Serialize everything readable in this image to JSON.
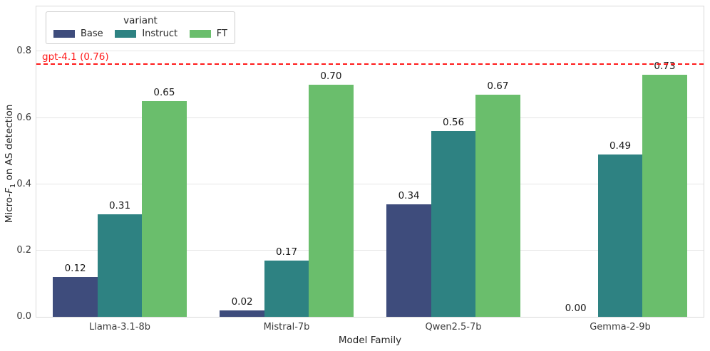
{
  "figure": {
    "background": "#ffffff",
    "plot_border_color": "#d9d9d9",
    "grid_color": "#e5e5e5",
    "tick_text_color": "#3a3a3a"
  },
  "chart_data": {
    "type": "bar",
    "title": "",
    "xlabel": "Model Family",
    "ylabel": {
      "prefix": "Micro-",
      "variable": "F",
      "subscript": "1",
      "suffix": " on AS detection"
    },
    "categories": [
      "Llama-3.1-8b",
      "Mistral-7b",
      "Qwen2.5-7b",
      "Gemma-2-9b"
    ],
    "series": [
      {
        "name": "Base",
        "color": "#3e4c7c",
        "values": [
          0.12,
          0.02,
          0.34,
          0.0
        ]
      },
      {
        "name": "Instruct",
        "color": "#2e8282",
        "values": [
          0.31,
          0.17,
          0.56,
          0.49
        ]
      },
      {
        "name": "FT",
        "color": "#6abe6c",
        "values": [
          0.65,
          0.7,
          0.67,
          0.73
        ]
      }
    ],
    "bar_value_labels": [
      [
        "0.12",
        "0.02",
        "0.34",
        "0.00"
      ],
      [
        "0.31",
        "0.17",
        "0.56",
        "0.49"
      ],
      [
        "0.65",
        "0.70",
        "0.67",
        "0.73"
      ]
    ],
    "yticks": [
      0.0,
      0.2,
      0.4,
      0.6,
      0.8
    ],
    "ytick_labels": [
      "0.0",
      "0.2",
      "0.4",
      "0.6",
      "0.8"
    ],
    "ylim": [
      0,
      0.936
    ],
    "grid": "horizontal",
    "legend": {
      "title": "variant",
      "position": "upper-left"
    },
    "reference_line": {
      "value": 0.76,
      "label": "gpt-4.1 (0.76)",
      "color": "#ff1a1a",
      "style": "dashed"
    }
  }
}
